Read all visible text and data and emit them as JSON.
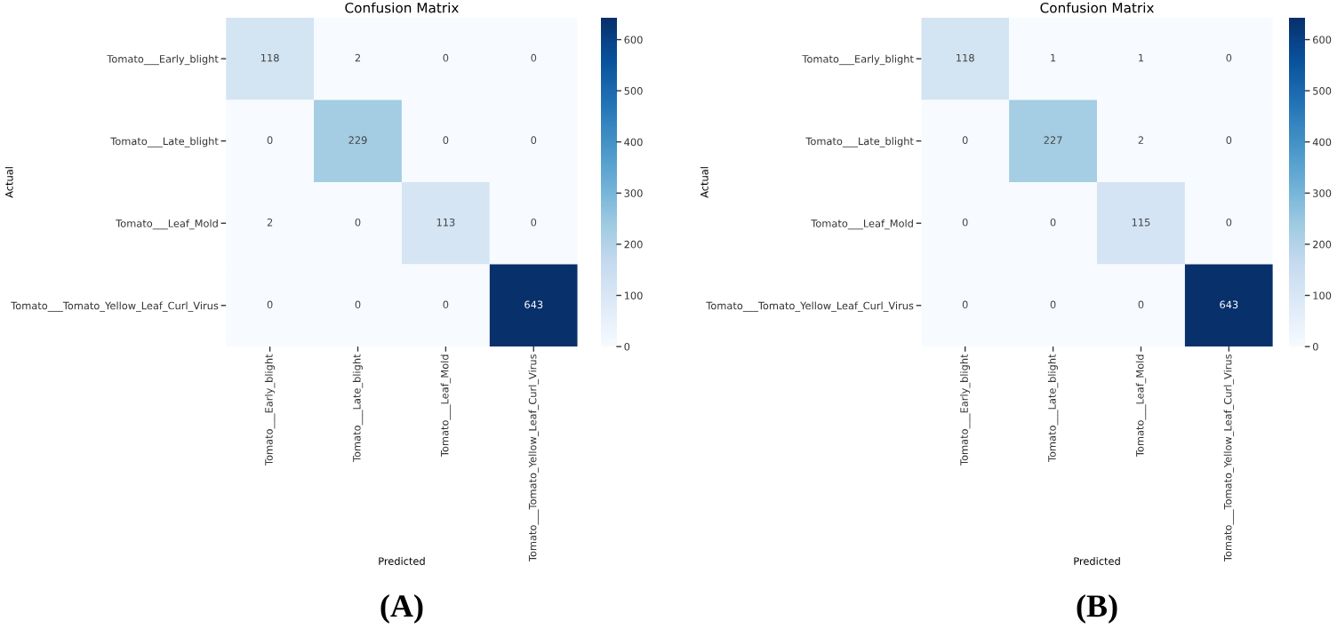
{
  "chart_data": [
    {
      "type": "heatmap",
      "title": "Confusion Matrix",
      "xlabel": "Predicted",
      "ylabel": "Actual",
      "categories": [
        "Tomato___Early_blight",
        "Tomato___Late_blight",
        "Tomato___Leaf_Mold",
        "Tomato___Tomato_Yellow_Leaf_Curl_Virus"
      ],
      "y_categories": [
        "Tomato___Early_blight",
        "Tomato___Late_blight",
        "Tomato___Leaf_Mold",
        "Tomato___Tomato_Yellow_Leaf_Curl_Virus"
      ],
      "cells": [
        [
          118,
          2,
          0,
          0
        ],
        [
          0,
          229,
          0,
          0
        ],
        [
          2,
          0,
          113,
          0
        ],
        [
          0,
          0,
          0,
          643
        ]
      ],
      "data_labels": true,
      "clim": [
        0,
        643
      ],
      "cticks": [
        0,
        100,
        200,
        300,
        400,
        500,
        600
      ],
      "annotations": [
        "(A)"
      ]
    },
    {
      "type": "heatmap",
      "title": "Confusion Matrix",
      "xlabel": "Predicted",
      "ylabel": "Actual",
      "categories": [
        "Tomato___Early_blight",
        "Tomato___Late_blight",
        "Tomato___Leaf_Mold",
        "Tomato___Tomato_Yellow_Leaf_Curl_Virus"
      ],
      "y_categories": [
        "Tomato___Early_blight",
        "Tomato___Late_blight",
        "Tomato___Leaf_Mold",
        "Tomato___Tomato_Yellow_Leaf_Curl_Virus"
      ],
      "cells": [
        [
          118,
          1,
          1,
          0
        ],
        [
          0,
          227,
          2,
          0
        ],
        [
          0,
          0,
          115,
          0
        ],
        [
          0,
          0,
          0,
          643
        ]
      ],
      "data_labels": true,
      "clim": [
        0,
        643
      ],
      "cticks": [
        0,
        100,
        200,
        300,
        400,
        500,
        600
      ],
      "annotations": [
        "(B)"
      ]
    }
  ]
}
